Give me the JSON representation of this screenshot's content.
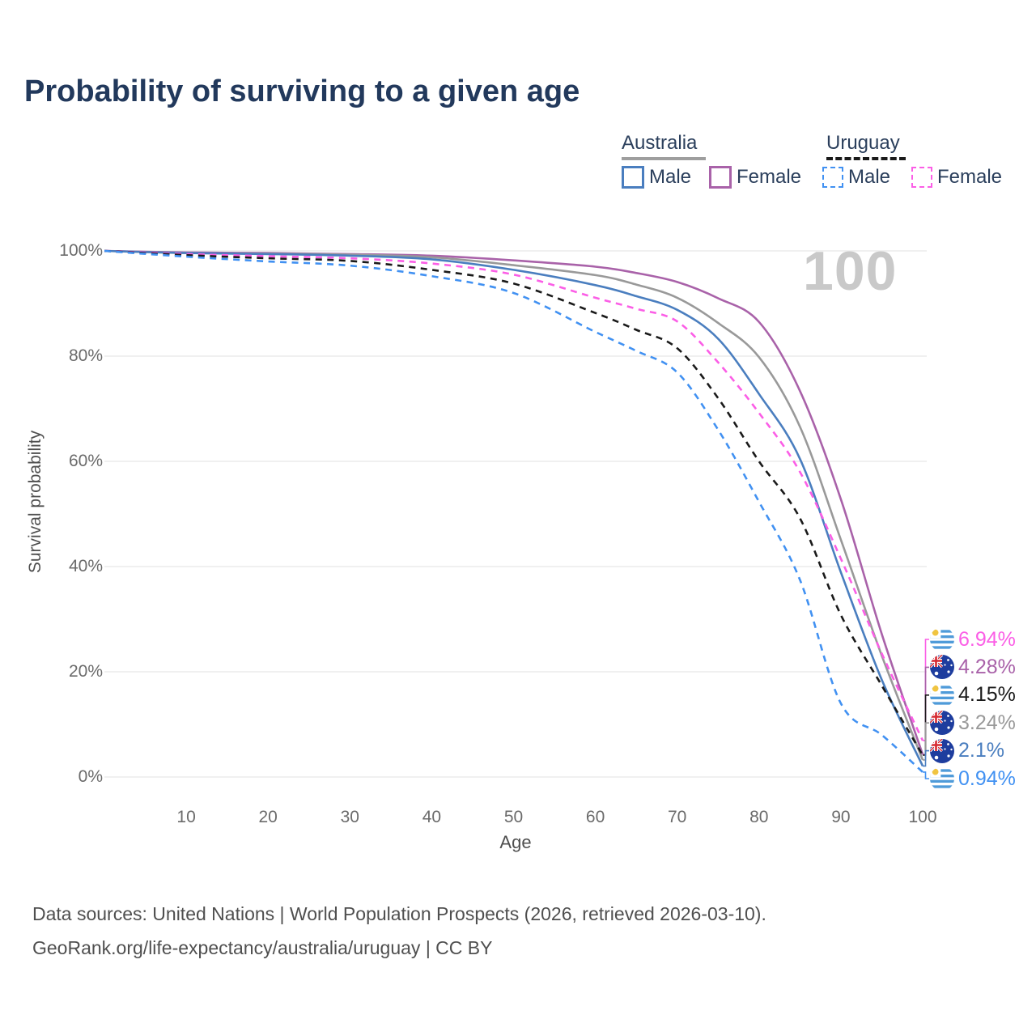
{
  "title": "Probability of surviving to a given age",
  "watermark_age": "100",
  "legend": {
    "groups": [
      {
        "label": "Australia",
        "style": "solid",
        "underline_color": "#9e9e9e",
        "items": [
          {
            "label": "Male",
            "color": "#4a7ebf"
          },
          {
            "label": "Female",
            "color": "#a962a9"
          }
        ]
      },
      {
        "label": "Uruguay",
        "style": "dashed",
        "underline_color": "#1a1a1a",
        "items": [
          {
            "label": "Male",
            "color": "#4191f2"
          },
          {
            "label": "Female",
            "color": "#fb5ee6"
          }
        ]
      }
    ]
  },
  "chart_data": {
    "type": "line",
    "title": "Probability of surviving to a given age",
    "xlabel": "Age",
    "ylabel": "Survival probability",
    "xlim": [
      0,
      100
    ],
    "ylim": [
      0,
      100
    ],
    "grid": "horizontal",
    "x_ticks": [
      10,
      20,
      30,
      40,
      50,
      60,
      70,
      80,
      90,
      100
    ],
    "y_ticks": [
      "0%",
      "20%",
      "40%",
      "60%",
      "80%",
      "100%"
    ],
    "x": [
      0,
      10,
      20,
      30,
      40,
      50,
      60,
      65,
      70,
      75,
      80,
      85,
      90,
      95,
      100
    ],
    "series": [
      {
        "name": "Australia Female",
        "country": "australia",
        "sex": "female",
        "color": "#a962a9",
        "style": "solid",
        "values": [
          100,
          99.7,
          99.6,
          99.4,
          99.1,
          98.2,
          97.0,
          95.8,
          94.1,
          91.0,
          86.5,
          73.4,
          52.8,
          27.2,
          4.28
        ]
      },
      {
        "name": "Australia Both sexes",
        "country": "australia",
        "sex": "both",
        "color": "#999999",
        "style": "solid",
        "values": [
          100,
          99.6,
          99.5,
          99.3,
          98.8,
          97.3,
          95.4,
          93.6,
          91.1,
          86.3,
          79.8,
          66.6,
          45.1,
          23.1,
          3.24
        ]
      },
      {
        "name": "Australia Male",
        "country": "australia",
        "sex": "male",
        "color": "#4a7ebf",
        "style": "solid",
        "values": [
          100,
          99.6,
          99.4,
          99.1,
          98.4,
          96.4,
          93.5,
          91.4,
          88.8,
          83.3,
          72.8,
          60.5,
          38.9,
          18.5,
          2.1
        ]
      },
      {
        "name": "Uruguay Female",
        "country": "uruguay",
        "sex": "female",
        "color": "#fb5ee6",
        "style": "dashed",
        "values": [
          100,
          99.4,
          99.0,
          98.6,
          97.6,
          95.5,
          91.1,
          89.0,
          86.6,
          78.8,
          69.2,
          58.0,
          41.5,
          23.5,
          6.94
        ]
      },
      {
        "name": "Uruguay Both sexes",
        "country": "uruguay",
        "sex": "both",
        "color": "#1a1a1a",
        "style": "dashed",
        "values": [
          100,
          99.2,
          98.6,
          98.1,
          96.4,
          93.8,
          88.2,
          85.0,
          81.5,
          72.0,
          60.0,
          49.2,
          30.8,
          17.4,
          4.15
        ]
      },
      {
        "name": "Uruguay Male",
        "country": "uruguay",
        "sex": "male",
        "color": "#4191f2",
        "style": "dashed",
        "values": [
          100,
          98.9,
          98.0,
          97.2,
          95.2,
          92.0,
          84.6,
          81.0,
          76.9,
          66.0,
          52.3,
          37.5,
          14.0,
          8.0,
          0.94
        ]
      }
    ]
  },
  "end_labels": [
    {
      "name": "uruguay-female",
      "value": "6.94%",
      "final": 6.94,
      "color": "#fb5ee6",
      "flag": "uruguay"
    },
    {
      "name": "australia-female",
      "value": "4.28%",
      "final": 4.28,
      "color": "#a962a9",
      "flag": "australia"
    },
    {
      "name": "uruguay-both",
      "value": "4.15%",
      "final": 4.15,
      "color": "#1a1a1a",
      "flag": "uruguay"
    },
    {
      "name": "australia-both",
      "value": "3.24%",
      "final": 3.24,
      "color": "#999999",
      "flag": "australia"
    },
    {
      "name": "australia-male",
      "value": "2.1%",
      "final": 2.1,
      "color": "#4a7ebf",
      "flag": "australia"
    },
    {
      "name": "uruguay-male",
      "value": "0.94%",
      "final": 0.94,
      "color": "#4191f2",
      "flag": "uruguay"
    }
  ],
  "footer": {
    "line1": "Data sources: United Nations | World Population Prospects (2026, retrieved 2026-03-10).",
    "line2": "GeoRank.org/life-expectancy/australia/uruguay | CC BY"
  }
}
